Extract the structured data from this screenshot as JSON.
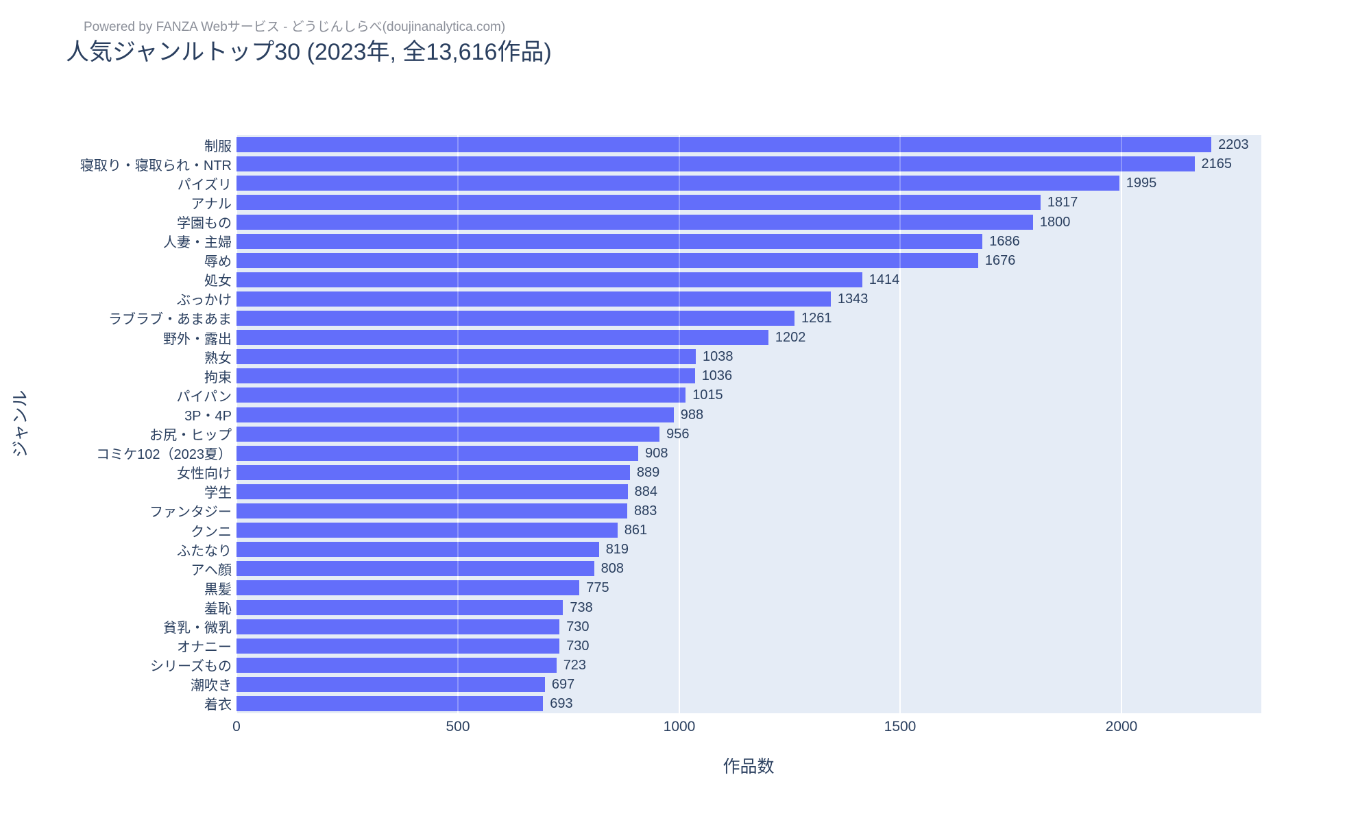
{
  "header": {
    "powered_by": "Powered by FANZA Webサービス - どうじんしらべ(doujinanalytica.com)",
    "title": "人気ジャンルトップ30 (2023年, 全13,616作品)"
  },
  "chart_data": {
    "type": "bar",
    "orientation": "horizontal",
    "title": "人気ジャンルトップ30 (2023年, 全13,616作品)",
    "xlabel": "作品数",
    "ylabel": "ジャンル",
    "categories": [
      "制服",
      "寝取り・寝取られ・NTR",
      "パイズリ",
      "アナル",
      "学園もの",
      "人妻・主婦",
      "辱め",
      "処女",
      "ぶっかけ",
      "ラブラブ・あまあま",
      "野外・露出",
      "熟女",
      "拘束",
      "パイパン",
      "3P・4P",
      "お尻・ヒップ",
      "コミケ102（2023夏）",
      "女性向け",
      "学生",
      "ファンタジー",
      "クンニ",
      "ふたなり",
      "アヘ顔",
      "黒髪",
      "羞恥",
      "貧乳・微乳",
      "オナニー",
      "シリーズもの",
      "潮吹き",
      "着衣"
    ],
    "values": [
      2203,
      2165,
      1995,
      1817,
      1800,
      1686,
      1676,
      1414,
      1343,
      1261,
      1202,
      1038,
      1036,
      1015,
      988,
      956,
      908,
      889,
      884,
      883,
      861,
      819,
      808,
      775,
      738,
      730,
      730,
      723,
      697,
      693
    ],
    "xticks": [
      0,
      500,
      1000,
      1500,
      2000
    ],
    "xlim": [
      0,
      2316
    ],
    "grid": true,
    "legend": "none",
    "colors": {
      "bar": "#636EFA",
      "plot_background": "#E5ECF6",
      "gridline": "#FFFFFF",
      "text": "#2A3F5F",
      "powered_by_text": "#8B8F99"
    }
  }
}
